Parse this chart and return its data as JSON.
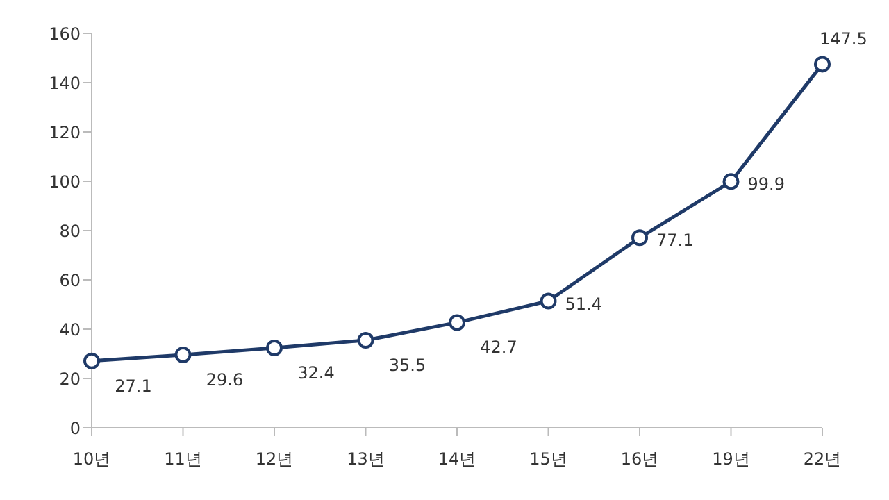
{
  "chart_data": {
    "type": "line",
    "categories": [
      "10년",
      "11년",
      "12년",
      "13년",
      "14년",
      "15년",
      "16년",
      "19년",
      "22년"
    ],
    "series": [
      {
        "color": "#1f3a68",
        "values": [
          27.1,
          29.6,
          32.4,
          35.5,
          42.7,
          51.4,
          77.1,
          99.9,
          147.5
        ]
      }
    ],
    "ylim": [
      0,
      160
    ],
    "yticks": [
      0,
      20,
      40,
      60,
      80,
      100,
      120,
      140,
      160
    ],
    "marker": "circle",
    "line_style": "solid",
    "data_labels": true
  }
}
